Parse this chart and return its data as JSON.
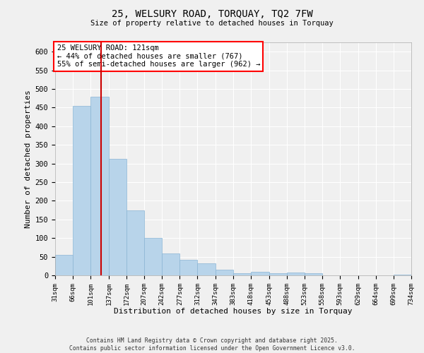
{
  "title": "25, WELSURY ROAD, TORQUAY, TQ2 7FW",
  "subtitle": "Size of property relative to detached houses in Torquay",
  "xlabel": "Distribution of detached houses by size in Torquay",
  "ylabel": "Number of detached properties",
  "bar_color": "#b8d4ea",
  "bar_edge_color": "#8ab4d4",
  "fig_bg_color": "#f0f0f0",
  "plot_bg_color": "#f0f0f0",
  "grid_color": "#ffffff",
  "annotation_box_text": "25 WELSURY ROAD: 121sqm\n← 44% of detached houses are smaller (767)\n55% of semi-detached houses are larger (962) →",
  "vline_x": 121,
  "vline_color": "#cc0000",
  "bins": [
    31,
    66,
    101,
    137,
    172,
    207,
    242,
    277,
    312,
    347,
    383,
    418,
    453,
    488,
    523,
    558,
    593,
    629,
    664,
    699,
    734
  ],
  "counts": [
    55,
    455,
    480,
    312,
    175,
    100,
    58,
    42,
    32,
    15,
    6,
    9,
    5,
    8,
    5,
    0,
    0,
    0,
    0,
    2
  ],
  "ylim": [
    0,
    625
  ],
  "yticks": [
    0,
    50,
    100,
    150,
    200,
    250,
    300,
    350,
    400,
    450,
    500,
    550,
    600
  ],
  "footer_line1": "Contains HM Land Registry data © Crown copyright and database right 2025.",
  "footer_line2": "Contains public sector information licensed under the Open Government Licence v3.0."
}
